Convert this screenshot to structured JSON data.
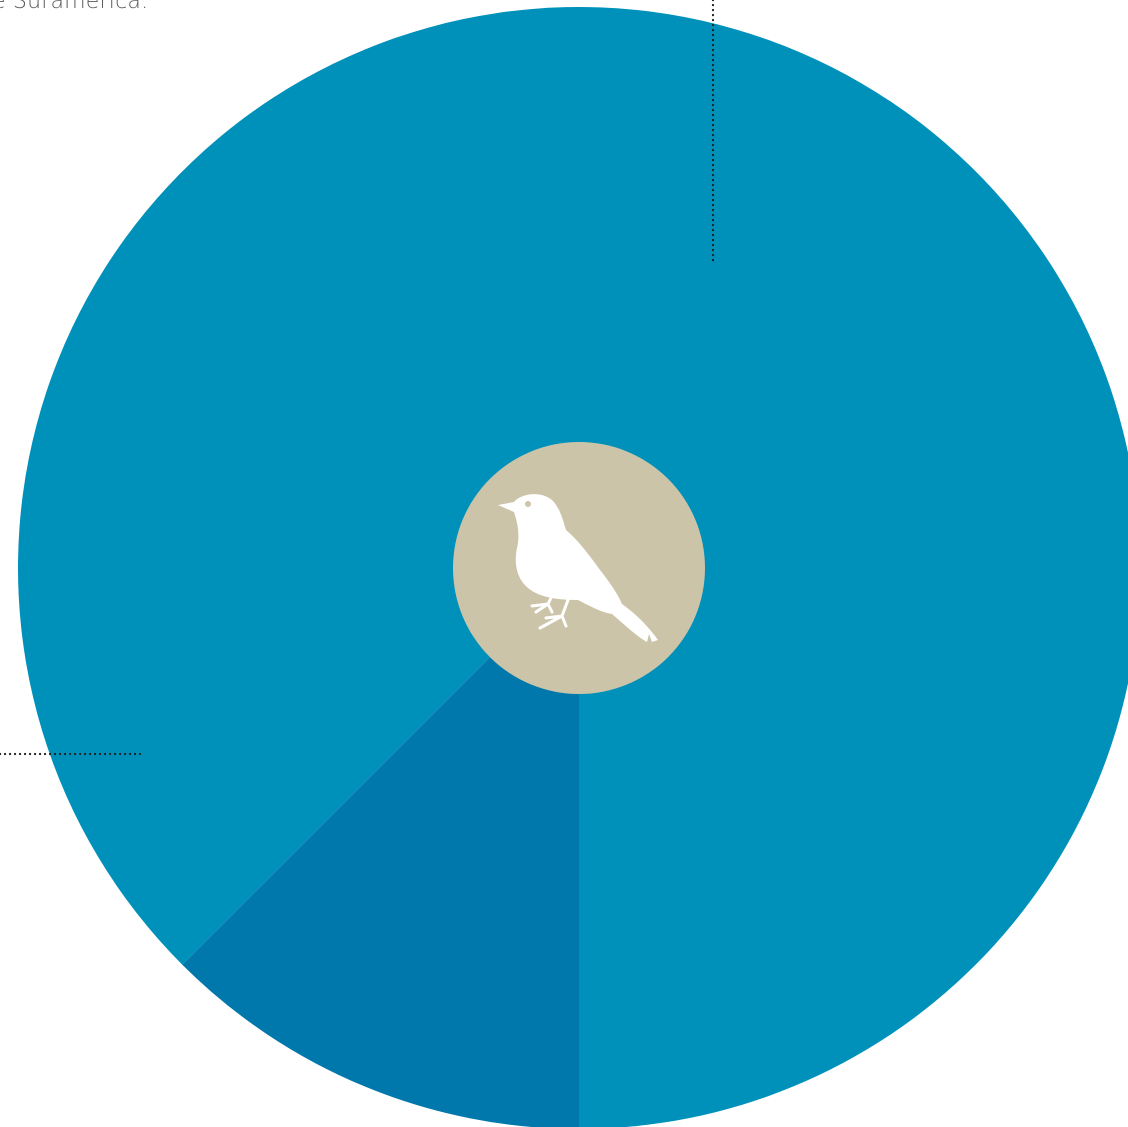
{
  "caption": {
    "text": "e Suramérica."
  },
  "chart_data": {
    "type": "pie",
    "title": "",
    "slices": [
      {
        "value": 225,
        "color": "#0091BA"
      },
      {
        "value": 45,
        "color": "#0078AB"
      },
      {
        "value": 90,
        "color": "#0091BA"
      }
    ],
    "center_badge": {
      "color": "#CCC4A8",
      "icon": "bird-icon",
      "icon_color": "#FFFFFF"
    },
    "leader_lines": [
      {
        "style": "dotted",
        "direction": "up",
        "target_slice": 0
      },
      {
        "style": "dotted",
        "direction": "left",
        "target_slice": 1
      }
    ]
  }
}
